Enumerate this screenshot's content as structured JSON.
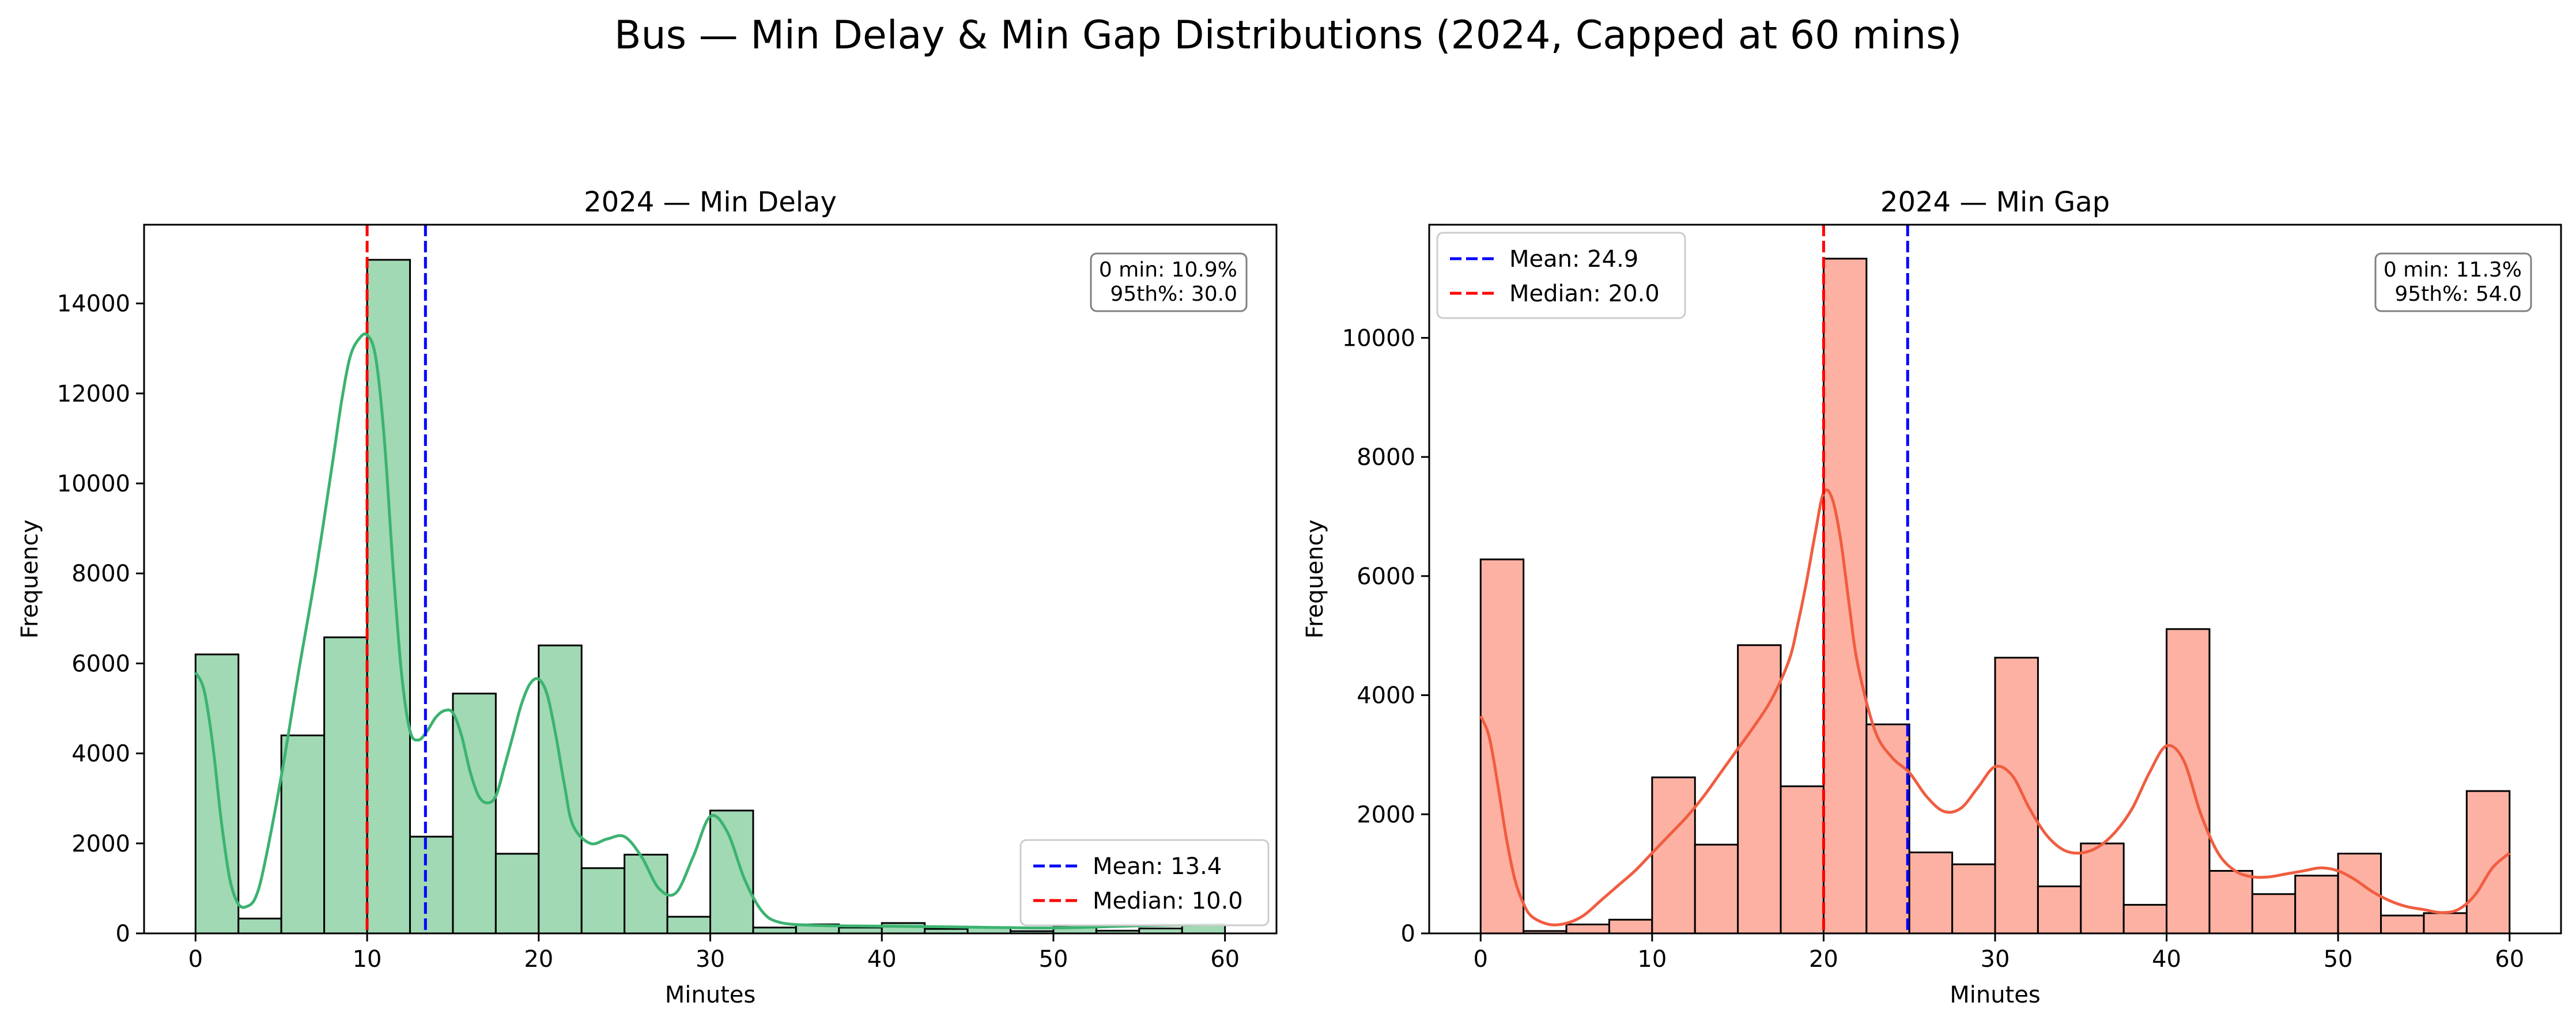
{
  "suptitle": "Bus — Min Delay & Min Gap Distributions (2024, Capped at 60 mins)",
  "colors": {
    "mean_line": "#0000ff",
    "median_line": "#ff0000",
    "bar_edge": "#000000"
  },
  "chart_data": [
    {
      "type": "bar",
      "title": "2024 — Min Delay",
      "xlabel": "Minutes",
      "ylabel": "Frequency",
      "xlim": [
        -3,
        63
      ],
      "ylim": [
        0,
        15750
      ],
      "xticks": [
        0,
        10,
        20,
        30,
        40,
        50,
        60
      ],
      "yticks": [
        0,
        2000,
        4000,
        6000,
        8000,
        10000,
        12000,
        14000
      ],
      "bar_color": "#a0d9b4",
      "kde_color": "#3cb371",
      "bin_width": 2.5,
      "bin_starts": [
        0,
        2.5,
        5,
        7.5,
        10,
        12.5,
        15,
        17.5,
        20,
        22.5,
        25,
        27.5,
        30,
        32.5,
        35,
        37.5,
        40,
        42.5,
        45,
        47.5,
        50,
        52.5,
        55,
        57.5
      ],
      "values": [
        6200,
        330,
        4400,
        6580,
        14970,
        2150,
        5330,
        1770,
        6400,
        1450,
        1750,
        370,
        2730,
        130,
        200,
        130,
        230,
        100,
        140,
        50,
        160,
        60,
        110,
        180
      ],
      "kde": {
        "x": [
          0,
          0.5,
          1,
          1.5,
          2,
          2.5,
          3,
          3.5,
          4,
          5,
          6,
          7,
          8,
          8.5,
          9,
          9.5,
          10,
          10.5,
          11,
          11.5,
          12,
          12.5,
          13,
          13.5,
          14,
          14.5,
          15,
          15.5,
          16,
          16.5,
          17,
          17.5,
          18,
          18.5,
          19,
          19.5,
          20,
          20.5,
          21,
          21.5,
          22,
          23,
          24,
          25,
          26,
          27,
          28,
          29,
          30,
          31,
          32,
          33,
          34,
          36,
          40,
          45,
          50,
          55,
          60
        ],
        "y": [
          5800,
          5400,
          4200,
          2500,
          1200,
          650,
          600,
          800,
          1500,
          3500,
          5800,
          8000,
          10500,
          11800,
          12800,
          13200,
          13300,
          12800,
          11000,
          8200,
          5800,
          4500,
          4300,
          4500,
          4800,
          4950,
          4900,
          4400,
          3600,
          3050,
          2900,
          3050,
          3700,
          4400,
          5100,
          5550,
          5650,
          5300,
          4400,
          3300,
          2400,
          2000,
          2100,
          2150,
          1700,
          1000,
          900,
          1700,
          2600,
          2250,
          1200,
          500,
          250,
          180,
          160,
          140,
          120,
          170,
          200
        ]
      },
      "mean": 13.4,
      "median": 10.0,
      "mean_label": "Mean: 13.4",
      "median_label": "Median: 10.0",
      "legend_position": "lower-right",
      "annotation": [
        "0 min: 10.9%",
        "95th%: 30.0"
      ],
      "annotation_position": "top-right"
    },
    {
      "type": "bar",
      "title": "2024 — Min Gap",
      "xlabel": "Minutes",
      "ylabel": "Frequency",
      "xlim": [
        -3,
        63
      ],
      "ylim": [
        0,
        11900
      ],
      "xticks": [
        0,
        10,
        20,
        30,
        40,
        50,
        60
      ],
      "yticks": [
        0,
        2000,
        4000,
        6000,
        8000,
        10000
      ],
      "bar_color": "#fdb1a3",
      "kde_color": "#f05d40",
      "bin_width": 2.5,
      "bin_starts": [
        0,
        2.5,
        5,
        7.5,
        10,
        12.5,
        15,
        17.5,
        20,
        22.5,
        25,
        27.5,
        30,
        32.5,
        35,
        37.5,
        40,
        42.5,
        45,
        47.5,
        50,
        52.5,
        55,
        57.5
      ],
      "values": [
        6280,
        40,
        150,
        230,
        2620,
        1490,
        4840,
        2470,
        11330,
        3510,
        1360,
        1160,
        4630,
        790,
        1510,
        480,
        5110,
        1050,
        660,
        970,
        1340,
        300,
        340,
        2390
      ],
      "kde": {
        "x": [
          0,
          0.5,
          1,
          1.5,
          2,
          2.5,
          3,
          4,
          5,
          6,
          7,
          8,
          9,
          10,
          11,
          12,
          13,
          14,
          15,
          16,
          17,
          18,
          18.5,
          19,
          19.5,
          20,
          20.5,
          21,
          21.5,
          22,
          23,
          24,
          25,
          26,
          27,
          28,
          29,
          30,
          31,
          32,
          33,
          34,
          35,
          36,
          37,
          38,
          39,
          40,
          41,
          42,
          43,
          44,
          45,
          46,
          47,
          48,
          49,
          50,
          51,
          52,
          53,
          54,
          55,
          56,
          57,
          58,
          59,
          60
        ],
        "y": [
          3650,
          3300,
          2500,
          1600,
          900,
          500,
          280,
          150,
          170,
          300,
          550,
          800,
          1050,
          1350,
          1650,
          1950,
          2300,
          2700,
          3100,
          3500,
          3950,
          4600,
          5200,
          5900,
          6700,
          7400,
          7300,
          6600,
          5500,
          4500,
          3400,
          2950,
          2700,
          2300,
          2050,
          2100,
          2450,
          2800,
          2650,
          2100,
          1650,
          1400,
          1350,
          1450,
          1700,
          2100,
          2700,
          3150,
          2900,
          2000,
          1350,
          1050,
          950,
          950,
          1000,
          1050,
          1100,
          1050,
          900,
          700,
          550,
          450,
          400,
          350,
          400,
          650,
          1100,
          1350
        ]
      },
      "mean": 24.9,
      "median": 20.0,
      "mean_label": "Mean: 24.9",
      "median_label": "Median: 20.0",
      "legend_position": "top-left",
      "annotation": [
        "0 min: 11.3%",
        "95th%: 54.0"
      ],
      "annotation_position": "top-right"
    }
  ]
}
